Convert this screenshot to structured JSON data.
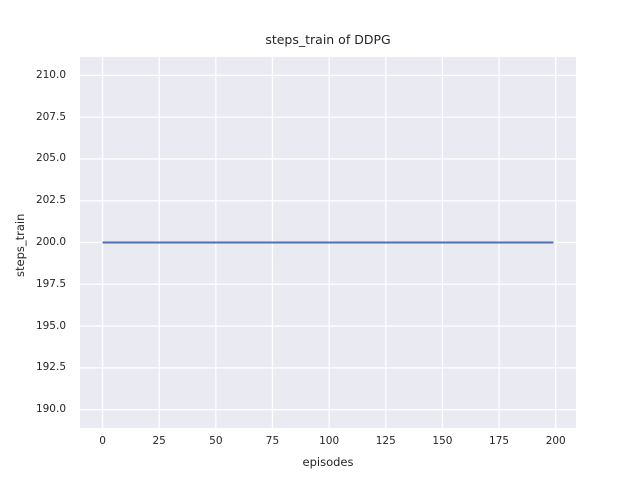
{
  "chart_data": {
    "type": "line",
    "title": "steps_train of DDPG",
    "xlabel": "episodes",
    "ylabel": "steps_train",
    "x": [
      0,
      199
    ],
    "series": [
      {
        "name": "steps_train",
        "values": [
          200,
          200
        ],
        "color": "#4c72b0"
      }
    ],
    "xtick_labels": [
      "0",
      "25",
      "50",
      "75",
      "100",
      "125",
      "150",
      "175",
      "200"
    ],
    "ytick_labels": [
      "190.0",
      "192.5",
      "195.0",
      "197.5",
      "200.0",
      "202.5",
      "205.0",
      "207.5",
      "210.0"
    ],
    "xlim": [
      -9.95,
      208.95
    ],
    "ylim": [
      188.9,
      211.1
    ],
    "grid": true,
    "legend": false,
    "plot_bg_color": "#eaeaf2",
    "grid_color": "#ffffff",
    "text_color": "#262626",
    "line_width": 2,
    "line_value": 200
  }
}
